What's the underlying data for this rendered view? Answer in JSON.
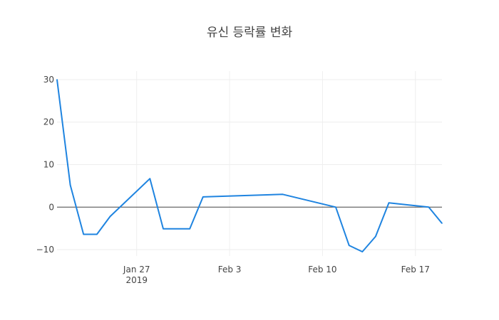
{
  "chart_data": {
    "type": "line",
    "title": "유신 등락률 변화",
    "xlabel": "",
    "ylabel": "",
    "x_range": [
      "2019-01-21",
      "2019-02-19"
    ],
    "ylim": [
      -11.5,
      32
    ],
    "y_ticks": [
      30,
      20,
      10,
      0,
      -10
    ],
    "y_tick_labels": [
      "30",
      "20",
      "10",
      "0",
      "−10"
    ],
    "x_ticks": [
      {
        "date": "2019-01-27",
        "label": "Jan 27",
        "sublabel": "2019"
      },
      {
        "date": "2019-02-03",
        "label": "Feb 3",
        "sublabel": ""
      },
      {
        "date": "2019-02-10",
        "label": "Feb 10",
        "sublabel": ""
      },
      {
        "date": "2019-02-17",
        "label": "Feb 17",
        "sublabel": ""
      }
    ],
    "grid": true,
    "zero_line": true,
    "series": [
      {
        "color": "#1f84e0",
        "x": [
          "2019-01-21",
          "2019-01-22",
          "2019-01-23",
          "2019-01-24",
          "2019-01-25",
          "2019-01-28",
          "2019-01-29",
          "2019-01-31",
          "2019-02-01",
          "2019-02-07",
          "2019-02-11",
          "2019-02-12",
          "2019-02-13",
          "2019-02-14",
          "2019-02-15",
          "2019-02-18",
          "2019-02-19"
        ],
        "y": [
          30.0,
          5.2,
          -6.4,
          -6.4,
          -2.2,
          6.7,
          -5.1,
          -5.1,
          2.4,
          3.0,
          0.0,
          -9.0,
          -10.5,
          -6.9,
          1.0,
          0.0,
          -3.8
        ]
      }
    ]
  }
}
